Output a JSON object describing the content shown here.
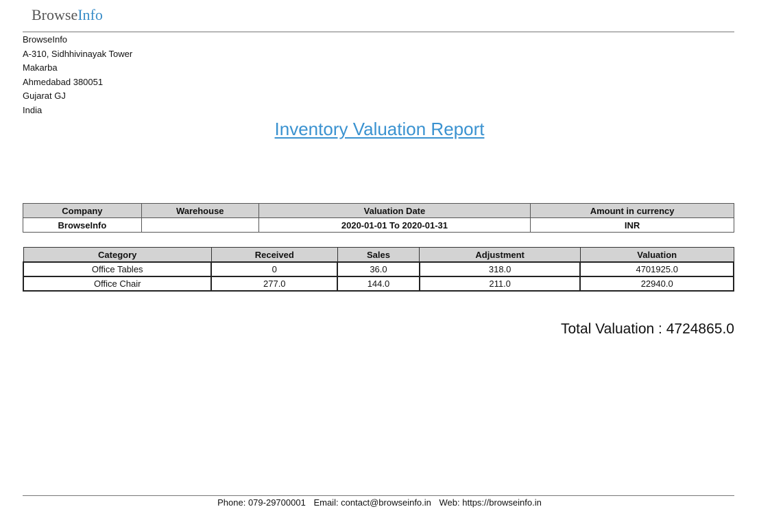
{
  "logo": {
    "part_a": "Browse",
    "part_b": "Info",
    "color_a": "#555555",
    "color_b": "#3a8dc8"
  },
  "company_address": [
    "BrowseInfo",
    "A-310, Sidhhivinayak Tower",
    "Makarba",
    "Ahmedabad 380051",
    "Gujarat GJ",
    "India"
  ],
  "report": {
    "title": "Inventory Valuation Report",
    "title_color": "#3a92d0"
  },
  "info_table": {
    "headers": [
      "Company",
      "Warehouse",
      "Valuation Date",
      "Amount in currency"
    ],
    "row": [
      "BrowseInfo",
      "",
      "2020-01-01 To 2020-01-31",
      "INR"
    ]
  },
  "category_table": {
    "headers": [
      "Category",
      "Received",
      "Sales",
      "Adjustment",
      "Valuation"
    ],
    "rows": [
      [
        "Office Tables",
        "0",
        "36.0",
        "318.0",
        "4701925.0"
      ],
      [
        "Office Chair",
        "277.0",
        "144.0",
        "211.0",
        "22940.0"
      ]
    ]
  },
  "total": {
    "label": "Total Valuation :",
    "value": "4724865.0"
  },
  "footer": {
    "phone": "Phone: 079-29700001",
    "email": "Email: contact@browseinfo.in",
    "web": "Web: https://browseinfo.in"
  }
}
